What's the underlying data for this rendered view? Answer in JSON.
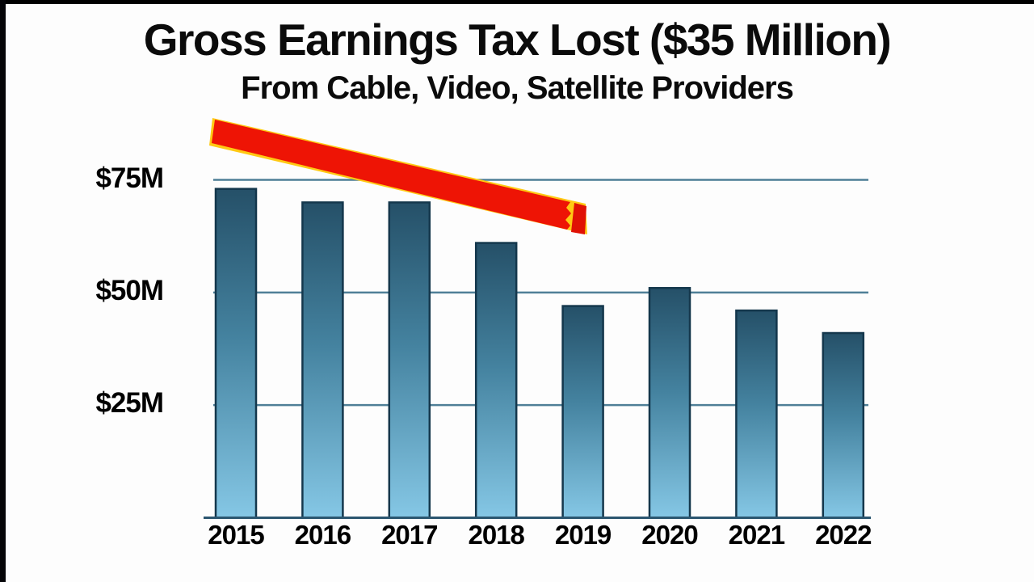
{
  "title": "Gross Earnings Tax Lost ($35 Million)",
  "subtitle": "From Cable, Video, Satellite Providers",
  "chart_data": {
    "type": "bar",
    "categories": [
      "2015",
      "2016",
      "2017",
      "2018",
      "2019",
      "2020",
      "2021",
      "2022"
    ],
    "values": [
      73,
      70,
      70,
      61,
      47,
      51,
      46,
      41
    ],
    "unit": "$M",
    "title": "Gross Earnings Tax Lost ($35 Million)",
    "subtitle": "From Cable, Video, Satellite Providers",
    "xlabel": "",
    "ylabel": "",
    "ylim": [
      0,
      80
    ],
    "yticks": [
      {
        "value": 75,
        "label": "$75M"
      },
      {
        "value": 50,
        "label": "$50M"
      },
      {
        "value": 25,
        "label": "$25M"
      }
    ],
    "grid": true,
    "legend": false,
    "annotation": {
      "type": "arrow",
      "meaning": "declining-trend-marker",
      "fill_color": "#ee1405",
      "cap_color": "#e01104",
      "edge_color": "#ffc913"
    }
  },
  "colors": {
    "background": "#fdfdfd",
    "letterbox": "#000000",
    "bar_gradient_top": "#255068",
    "bar_gradient_mid": "#44829f",
    "bar_gradient_bottom": "#85c7e5",
    "bar_outline": "#14374c",
    "gridline": "#4f7f97",
    "baseline": "#2b5670",
    "text": "#0b0b0b"
  }
}
